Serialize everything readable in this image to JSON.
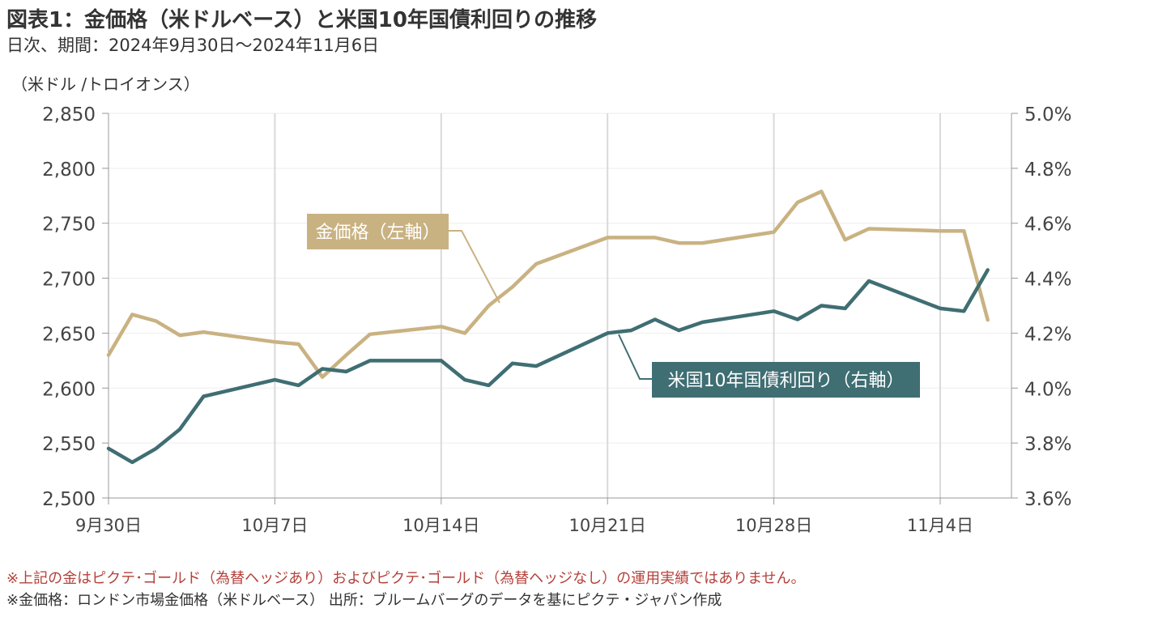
{
  "header": {
    "title": "図表1：金価格（米ドルベース）と米国10年国債利回りの推移",
    "subtitle": "日次、期間：2024年9月30日～2024年11月6日",
    "unit_label": "（米ドル /トロイオンス）"
  },
  "notes": {
    "note1": "※上記の金はピクテ･ゴールド（為替ヘッジあり）およびピクテ･ゴールド（為替ヘッジなし）の運用実績ではありません。",
    "note2": "※金価格：ロンドン市場金価格（米ドルベース） 出所：ブルームバーグのデータを基にピクテ・ジャパン作成"
  },
  "colors": {
    "gold": "#c9b282",
    "treasury": "#3f6e73",
    "grid": "#d9d9d9",
    "axis": "#999999"
  },
  "chart_data": {
    "type": "line",
    "x_tick_labels": [
      "9月30日",
      "10月7日",
      "10月14日",
      "10月21日",
      "10月28日",
      "11月4日"
    ],
    "x_tick_index": [
      0,
      7,
      14,
      21,
      28,
      35
    ],
    "x_range": [
      0,
      38
    ],
    "y_left": {
      "range": [
        2500,
        2850
      ],
      "ticks": [
        "2,500",
        "2,550",
        "2,600",
        "2,650",
        "2,700",
        "2,750",
        "2,800",
        "2,850"
      ]
    },
    "y_right": {
      "range": [
        3.6,
        5.0
      ],
      "ticks": [
        "3.6%",
        "3.8%",
        "4.0%",
        "4.2%",
        "4.4%",
        "4.6%",
        "4.8%",
        "5.0%"
      ]
    },
    "grid": "vertical",
    "series": [
      {
        "name": "金価格（左軸）",
        "axis": "left",
        "x": [
          0,
          1,
          2,
          3,
          4,
          7,
          8,
          9,
          10,
          11,
          14,
          15,
          16,
          17,
          18,
          21,
          22,
          23,
          24,
          25,
          28,
          29,
          30,
          31,
          32,
          35,
          36,
          37
        ],
        "values": [
          2630,
          2667,
          2661,
          2648,
          2651,
          2642,
          2640,
          2610,
          2630,
          2649,
          2656,
          2650,
          2675,
          2692,
          2713,
          2737,
          2737,
          2737,
          2732,
          2732,
          2742,
          2769,
          2779,
          2735,
          2745,
          2743,
          2743,
          2662
        ]
      },
      {
        "name": "米国10年国債利回り（右軸）",
        "axis": "right",
        "x": [
          0,
          1,
          2,
          3,
          4,
          7,
          8,
          9,
          10,
          11,
          14,
          15,
          16,
          17,
          18,
          21,
          22,
          23,
          24,
          25,
          28,
          29,
          30,
          31,
          32,
          35,
          36,
          37
        ],
        "values": [
          3.78,
          3.73,
          3.78,
          3.85,
          3.97,
          4.03,
          4.01,
          4.07,
          4.06,
          4.1,
          4.1,
          4.03,
          4.01,
          4.09,
          4.08,
          4.2,
          4.21,
          4.25,
          4.21,
          4.24,
          4.28,
          4.25,
          4.3,
          4.29,
          4.39,
          4.29,
          4.28,
          4.43
        ]
      }
    ],
    "annotations": [
      {
        "series": 0,
        "text": "金価格（左軸）"
      },
      {
        "series": 1,
        "text": "米国10年国債利回り（右軸）"
      }
    ]
  }
}
